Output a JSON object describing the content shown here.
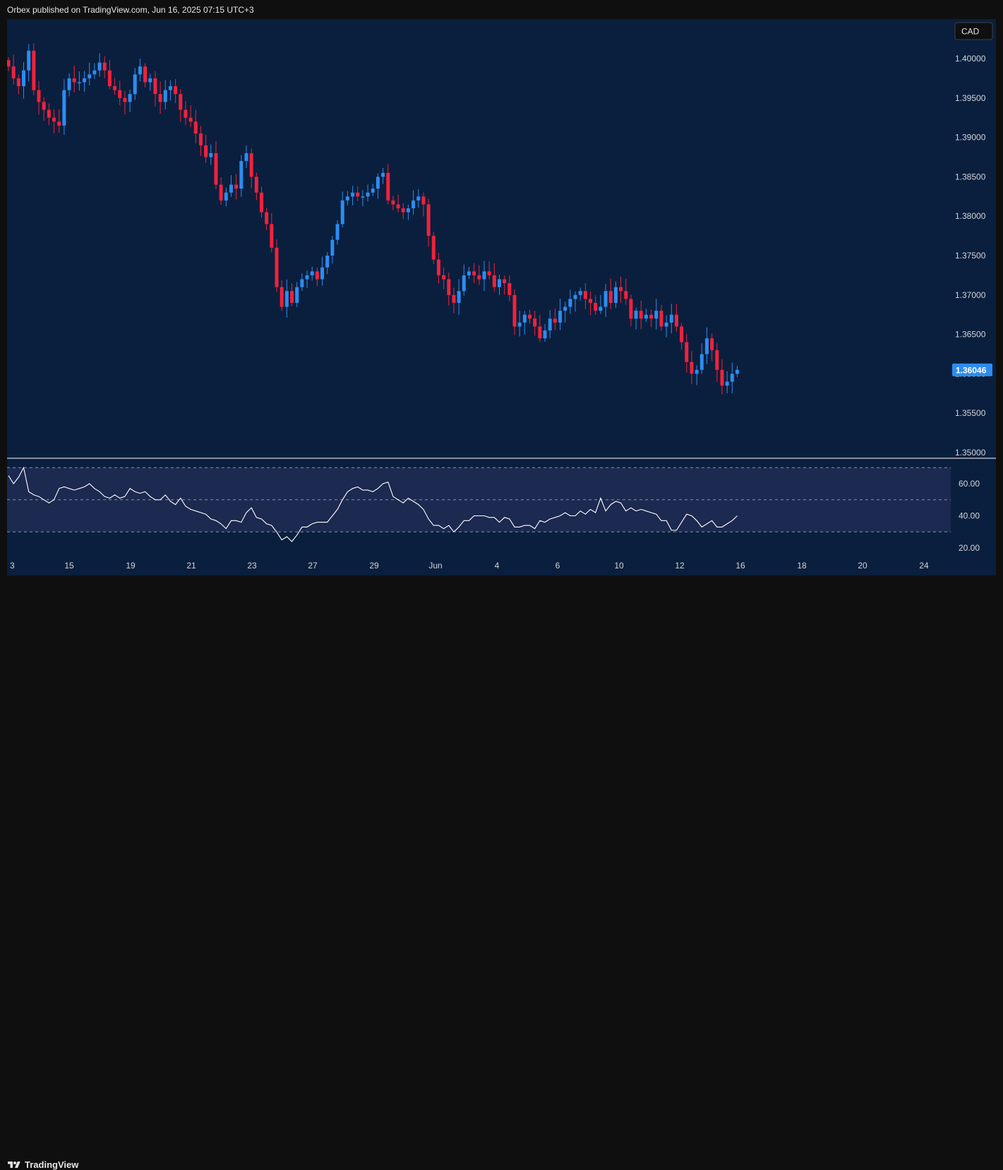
{
  "header": {
    "publisher": "Orbex published on TradingView.com, Jun 16, 2025 07:15 UTC+3"
  },
  "footer": {
    "brand": "TradingView"
  },
  "colors": {
    "background": "#0a1f3d",
    "up": "#2d8cf0",
    "down": "#f0223c",
    "rsi_band": "#1c2950",
    "rsi_line": "#ffffff",
    "price_tag": "#2d8cf0"
  },
  "chart_data": [
    {
      "type": "candlestick",
      "currency_label": "CAD",
      "last_price_label": "1.36046",
      "ylim": [
        1.35,
        1.4
      ],
      "ytick_labels": [
        "1.40000",
        "1.39500",
        "1.39000",
        "1.38500",
        "1.38000",
        "1.37500",
        "1.37000",
        "1.36500",
        "1.36000",
        "1.35500",
        "1.35000"
      ],
      "yticks": [
        1.4,
        1.395,
        1.39,
        1.385,
        1.38,
        1.375,
        1.37,
        1.365,
        1.36,
        1.355,
        1.35
      ],
      "xtick_labels": [
        "3",
        "15",
        "19",
        "21",
        "23",
        "27",
        "29",
        "Jun",
        "4",
        "6",
        "10",
        "12",
        "16",
        "18",
        "20",
        "24"
      ],
      "close": [
        1.399,
        1.3975,
        1.3965,
        1.3985,
        1.401,
        1.396,
        1.3945,
        1.3935,
        1.3925,
        1.392,
        1.3915,
        1.396,
        1.3975,
        1.397,
        1.397,
        1.3975,
        1.398,
        1.3985,
        1.3995,
        1.3985,
        1.3965,
        1.396,
        1.395,
        1.3945,
        1.3955,
        1.398,
        1.399,
        1.397,
        1.3975,
        1.3955,
        1.3945,
        1.396,
        1.3965,
        1.3955,
        1.3935,
        1.3925,
        1.392,
        1.3905,
        1.389,
        1.3875,
        1.388,
        1.384,
        1.382,
        1.383,
        1.384,
        1.3835,
        1.387,
        1.388,
        1.385,
        1.383,
        1.3805,
        1.379,
        1.376,
        1.371,
        1.3685,
        1.3705,
        1.369,
        1.371,
        1.372,
        1.3725,
        1.373,
        1.372,
        1.3735,
        1.375,
        1.377,
        1.379,
        1.382,
        1.3825,
        1.383,
        1.3825,
        1.3825,
        1.383,
        1.3835,
        1.385,
        1.3855,
        1.382,
        1.3815,
        1.381,
        1.3805,
        1.381,
        1.382,
        1.3825,
        1.3815,
        1.3775,
        1.3745,
        1.3725,
        1.372,
        1.37,
        1.369,
        1.3705,
        1.3725,
        1.373,
        1.3725,
        1.372,
        1.373,
        1.3725,
        1.371,
        1.372,
        1.3715,
        1.37,
        1.366,
        1.3665,
        1.3675,
        1.367,
        1.366,
        1.3645,
        1.3655,
        1.367,
        1.3665,
        1.368,
        1.3685,
        1.3695,
        1.37,
        1.3705,
        1.3695,
        1.369,
        1.368,
        1.3685,
        1.3705,
        1.369,
        1.371,
        1.3705,
        1.3695,
        1.367,
        1.368,
        1.367,
        1.3675,
        1.367,
        1.368,
        1.366,
        1.3665,
        1.3675,
        1.366,
        1.364,
        1.3615,
        1.36,
        1.3605,
        1.3625,
        1.3645,
        1.363,
        1.3605,
        1.3585,
        1.359,
        1.36,
        1.3605
      ],
      "ohlc_note": "open of each candle = close of prior candle",
      "series_rsi": {
        "type": "line",
        "ylim": [
          15,
          75
        ],
        "ytick_labels": [
          "60.00",
          "40.00",
          "20.00"
        ],
        "yticks": [
          60,
          40,
          20
        ],
        "bands": [
          70,
          50,
          30
        ],
        "values": [
          65,
          60,
          64,
          70,
          55,
          53,
          52,
          50,
          48,
          50,
          57,
          58,
          57,
          56,
          57,
          58,
          60,
          57,
          55,
          52,
          51,
          53,
          51,
          52,
          57,
          55,
          54,
          55,
          52,
          50,
          50,
          53,
          49,
          47,
          51,
          46,
          44,
          43,
          42,
          41,
          38,
          37,
          35,
          32,
          37,
          37,
          36,
          42,
          45,
          39,
          38,
          35,
          34,
          30,
          25,
          27,
          24,
          28,
          33,
          33,
          35,
          36,
          36,
          36,
          40,
          44,
          50,
          55,
          57,
          58,
          56,
          56,
          55,
          57,
          60,
          61,
          52,
          50,
          48,
          51,
          49,
          47,
          44,
          38,
          34,
          34,
          32,
          34,
          30,
          33,
          37,
          37,
          40,
          40,
          40,
          39,
          39,
          36,
          39,
          38,
          33,
          33,
          34,
          34,
          32,
          37,
          36,
          38,
          39,
          40,
          42,
          40,
          40,
          43,
          41,
          44,
          42,
          51,
          43,
          47,
          49,
          48,
          43,
          45,
          43,
          44,
          43,
          42,
          41,
          37,
          37,
          31,
          31,
          36,
          41,
          40,
          37,
          33,
          35,
          37,
          33,
          33,
          35,
          37,
          40
        ]
      }
    }
  ]
}
